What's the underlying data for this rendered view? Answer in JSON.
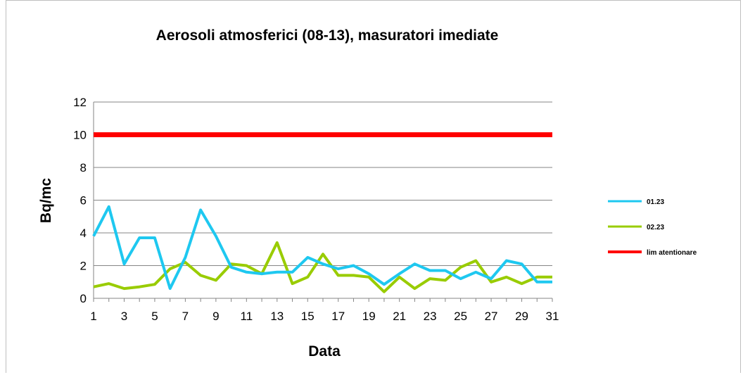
{
  "chart_data": {
    "type": "line",
    "title": "Aerosoli atmosferici (08-13), masuratori imediate",
    "xlabel": "Data",
    "ylabel": "Bq/mc",
    "ylim": [
      0,
      12
    ],
    "yticks": [
      0,
      2,
      4,
      6,
      8,
      10,
      12
    ],
    "x": [
      1,
      2,
      3,
      4,
      5,
      6,
      7,
      8,
      9,
      10,
      11,
      12,
      13,
      14,
      15,
      16,
      17,
      18,
      19,
      20,
      21,
      22,
      23,
      24,
      25,
      26,
      27,
      28,
      29,
      30,
      31
    ],
    "xtick_labels": [
      "1",
      "3",
      "5",
      "7",
      "9",
      "11",
      "13",
      "15",
      "17",
      "19",
      "21",
      "23",
      "25",
      "27",
      "29",
      "31"
    ],
    "grid": "horizontal",
    "legend_position": "right",
    "series": [
      {
        "name": "01.23",
        "color": "#1ec8f0",
        "values": [
          3.8,
          5.6,
          2.1,
          3.7,
          3.7,
          0.6,
          2.5,
          5.4,
          3.8,
          1.9,
          1.6,
          1.5,
          1.6,
          1.6,
          2.5,
          2.1,
          1.8,
          2.0,
          1.5,
          0.85,
          1.5,
          2.1,
          1.7,
          1.7,
          1.2,
          1.6,
          1.2,
          2.3,
          2.1,
          1.0,
          1.0
        ]
      },
      {
        "name": "02.23",
        "color": "#99cc00",
        "values": [
          0.7,
          0.9,
          0.6,
          0.7,
          0.85,
          1.8,
          2.2,
          1.4,
          1.1,
          2.1,
          2.0,
          1.5,
          3.4,
          0.9,
          1.3,
          2.7,
          1.4,
          1.4,
          1.3,
          0.4,
          1.3,
          0.6,
          1.2,
          1.1,
          1.9,
          2.3,
          1.0,
          1.3,
          0.9,
          1.3,
          1.3
        ]
      },
      {
        "name": "lim atentionare",
        "color": "#ff0000",
        "values": [
          10,
          10,
          10,
          10,
          10,
          10,
          10,
          10,
          10,
          10,
          10,
          10,
          10,
          10,
          10,
          10,
          10,
          10,
          10,
          10,
          10,
          10,
          10,
          10,
          10,
          10,
          10,
          10,
          10,
          10,
          10
        ]
      }
    ]
  }
}
